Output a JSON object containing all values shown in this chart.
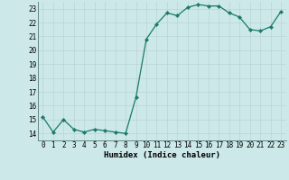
{
  "x": [
    0,
    1,
    2,
    3,
    4,
    5,
    6,
    7,
    8,
    9,
    10,
    11,
    12,
    13,
    14,
    15,
    16,
    17,
    18,
    19,
    20,
    21,
    22,
    23
  ],
  "y": [
    15.2,
    14.1,
    15.0,
    14.3,
    14.1,
    14.3,
    14.2,
    14.1,
    14.0,
    16.6,
    20.8,
    21.9,
    22.7,
    22.5,
    23.1,
    23.3,
    23.2,
    23.2,
    22.7,
    22.4,
    21.5,
    21.4,
    21.7,
    22.8
  ],
  "line_color": "#1a7a6a",
  "marker": "D",
  "marker_size": 2.2,
  "bg_color": "#cce8e8",
  "grid_color": "#b8d4d4",
  "xlabel": "Humidex (Indice chaleur)",
  "xlim": [
    -0.5,
    23.5
  ],
  "ylim": [
    13.5,
    23.5
  ],
  "yticks": [
    14,
    15,
    16,
    17,
    18,
    19,
    20,
    21,
    22,
    23
  ],
  "xticks": [
    0,
    1,
    2,
    3,
    4,
    5,
    6,
    7,
    8,
    9,
    10,
    11,
    12,
    13,
    14,
    15,
    16,
    17,
    18,
    19,
    20,
    21,
    22,
    23
  ],
  "xlabel_fontsize": 6.5,
  "tick_fontsize": 5.5,
  "linewidth": 0.9
}
